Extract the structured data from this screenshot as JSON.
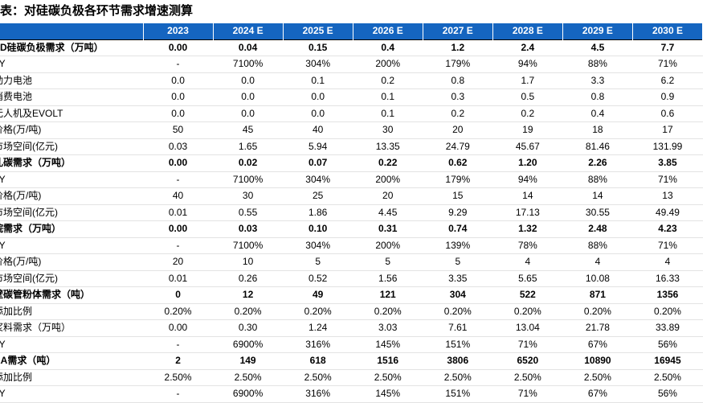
{
  "title": "表：对硅碳负极各环节需求增速测算",
  "columns": [
    "2023",
    "2024 E",
    "2025 E",
    "2026 E",
    "2027 E",
    "2028 E",
    "2029 E",
    "2030 E"
  ],
  "rows": [
    {
      "label": "VD硅碳负极需求（万吨）",
      "bold": true,
      "values": [
        "0.00",
        "0.04",
        "0.15",
        "0.4",
        "1.2",
        "2.4",
        "4.5",
        "7.7"
      ]
    },
    {
      "label": "oY",
      "bold": false,
      "values": [
        "-",
        "7100%",
        "304%",
        "200%",
        "179%",
        "94%",
        "88%",
        "71%"
      ]
    },
    {
      "label": "动力电池",
      "bold": false,
      "values": [
        "0.0",
        "0.0",
        "0.1",
        "0.2",
        "0.8",
        "1.7",
        "3.3",
        "6.2"
      ]
    },
    {
      "label": "消费电池",
      "bold": false,
      "values": [
        "0.0",
        "0.0",
        "0.0",
        "0.1",
        "0.3",
        "0.5",
        "0.8",
        "0.9"
      ]
    },
    {
      "label": "无人机及EVOLT",
      "bold": false,
      "values": [
        "0.0",
        "0.0",
        "0.0",
        "0.1",
        "0.2",
        "0.2",
        "0.4",
        "0.6"
      ]
    },
    {
      "label": "价格(万/吨)",
      "bold": false,
      "values": [
        "50",
        "45",
        "40",
        "30",
        "20",
        "19",
        "18",
        "17"
      ]
    },
    {
      "label": "市场空间(亿元)",
      "bold": false,
      "values": [
        "0.03",
        "1.65",
        "5.94",
        "13.35",
        "24.79",
        "45.67",
        "81.46",
        "131.99"
      ]
    },
    {
      "label": "孔碳需求（万吨）",
      "bold": true,
      "values": [
        "0.00",
        "0.02",
        "0.07",
        "0.22",
        "0.62",
        "1.20",
        "2.26",
        "3.85"
      ]
    },
    {
      "label": "oY",
      "bold": false,
      "values": [
        "-",
        "7100%",
        "304%",
        "200%",
        "179%",
        "94%",
        "88%",
        "71%"
      ]
    },
    {
      "label": "价格(万/吨)",
      "bold": false,
      "values": [
        "40",
        "30",
        "25",
        "20",
        "15",
        "14",
        "14",
        "13"
      ]
    },
    {
      "label": "市场空间(亿元)",
      "bold": false,
      "values": [
        "0.01",
        "0.55",
        "1.86",
        "4.45",
        "9.29",
        "17.13",
        "30.55",
        "49.49"
      ]
    },
    {
      "label": "烷需求（万吨）",
      "bold": true,
      "values": [
        "0.00",
        "0.03",
        "0.10",
        "0.31",
        "0.74",
        "1.32",
        "2.48",
        "4.23"
      ]
    },
    {
      "label": "oY",
      "bold": false,
      "values": [
        "-",
        "7100%",
        "304%",
        "200%",
        "139%",
        "78%",
        "88%",
        "71%"
      ]
    },
    {
      "label": "价格(万/吨)",
      "bold": false,
      "values": [
        "20",
        "10",
        "5",
        "5",
        "5",
        "4",
        "4",
        "4"
      ]
    },
    {
      "label": "市场空间(亿元)",
      "bold": false,
      "values": [
        "0.01",
        "0.26",
        "0.52",
        "1.56",
        "3.35",
        "5.65",
        "10.08",
        "16.33"
      ]
    },
    {
      "label": "壁碳管粉体需求（吨）",
      "bold": true,
      "values": [
        "0",
        "12",
        "49",
        "121",
        "304",
        "522",
        "871",
        "1356"
      ]
    },
    {
      "label": "添加比例",
      "bold": false,
      "values": [
        "0.20%",
        "0.20%",
        "0.20%",
        "0.20%",
        "0.20%",
        "0.20%",
        "0.20%",
        "0.20%"
      ]
    },
    {
      "label": "浆料需求（万吨）",
      "bold": false,
      "values": [
        "0.00",
        "0.30",
        "1.24",
        "3.03",
        "7.61",
        "13.04",
        "21.78",
        "33.89"
      ]
    },
    {
      "label": "oY",
      "bold": false,
      "values": [
        "-",
        "6900%",
        "316%",
        "145%",
        "151%",
        "71%",
        "67%",
        "56%"
      ]
    },
    {
      "label": "AA需求（吨）",
      "bold": true,
      "values": [
        "2",
        "149",
        "618",
        "1516",
        "3806",
        "6520",
        "10890",
        "16945"
      ]
    },
    {
      "label": "添加比例",
      "bold": false,
      "values": [
        "2.50%",
        "2.50%",
        "2.50%",
        "2.50%",
        "2.50%",
        "2.50%",
        "2.50%",
        "2.50%"
      ]
    },
    {
      "label": "oY",
      "bold": false,
      "values": [
        "-",
        "6900%",
        "316%",
        "145%",
        "151%",
        "71%",
        "67%",
        "56%"
      ]
    }
  ]
}
